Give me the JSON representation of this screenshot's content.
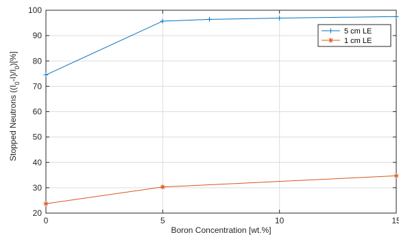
{
  "chart_data": {
    "type": "line",
    "title": "",
    "xlabel": "Boron Concentration [wt.%]",
    "ylabel_parts": [
      "Stopped Neutrons ((I",
      "0",
      "-I)/I",
      "0",
      ")[%]"
    ],
    "xlim": [
      0,
      15
    ],
    "ylim": [
      20,
      100
    ],
    "x_ticks": [
      0,
      5,
      10,
      15
    ],
    "x_tick_labels": [
      "0",
      "5",
      "10",
      "15"
    ],
    "y_ticks": [
      20,
      30,
      40,
      50,
      60,
      70,
      80,
      90,
      100
    ],
    "y_tick_labels": [
      "20",
      "30",
      "40",
      "50",
      "60",
      "70",
      "80",
      "90",
      "100"
    ],
    "grid": true,
    "legend_position": "top-right",
    "series": [
      {
        "name": "5 cm LE",
        "color": "#0072BD",
        "marker": "plus",
        "x": [
          0,
          5,
          7,
          10,
          15
        ],
        "y": [
          74.5,
          95.7,
          96.4,
          96.9,
          97.5
        ]
      },
      {
        "name": "1 cm LE",
        "color": "#D95319",
        "marker": "asterisk",
        "x": [
          0,
          5,
          15
        ],
        "y": [
          23.7,
          30.3,
          34.7
        ]
      }
    ]
  }
}
